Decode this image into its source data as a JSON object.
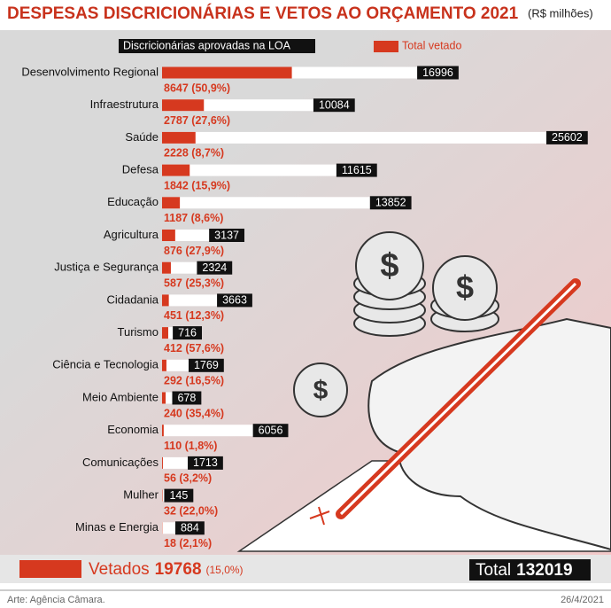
{
  "chart_data": {
    "type": "bar",
    "title": "DESPESAS DISCRICIONÁRIAS E VETOS AO ORÇAMENTO 2021",
    "subtitle": "(R$ milhões)",
    "categories": [
      "Desenvolvimento Regional",
      "Infraestrutura",
      "Saúde",
      "Defesa",
      "Educação",
      "Agricultura",
      "Justiça e Segurança",
      "Cidadania",
      "Turismo",
      "Ciência e Tecnologia",
      "Meio Ambiente",
      "Economia",
      "Comunicações",
      "Mulher",
      "Minas e Energia"
    ],
    "series": [
      {
        "name": "Discricionárias aprovadas na LOA",
        "color": "#ffffff",
        "values": [
          16996,
          10084,
          25602,
          11615,
          13852,
          3137,
          2324,
          3663,
          716,
          1769,
          678,
          6056,
          1713,
          145,
          884
        ]
      },
      {
        "name": "Total vetado",
        "color": "#d6391f",
        "values": [
          8647,
          2787,
          2228,
          1842,
          1187,
          876,
          587,
          451,
          412,
          292,
          240,
          110,
          56,
          32,
          18
        ],
        "value_labels": [
          "8647 (50,9%)",
          "2787 (27,6%)",
          "2228 (8,7%)",
          "1842 (15,9%)",
          "1187 (8,6%)",
          "876 (27,9%)",
          "587 (25,3%)",
          "451 (12,3%)",
          "412 (57,6%)",
          "292 (16,5%)",
          "240 (35,4%)",
          "110 (1,8%)",
          "56 (3,2%)",
          "32 (22,0%)",
          "18 (2,1%)"
        ]
      }
    ],
    "summary": {
      "vetoed": {
        "label": "Vetados",
        "value": 19768,
        "share": "(15,0%)"
      },
      "total": {
        "label": "Total",
        "value": 132019
      }
    },
    "credit": "Arte: Agência Câmara.",
    "date": "26/4/2021"
  }
}
